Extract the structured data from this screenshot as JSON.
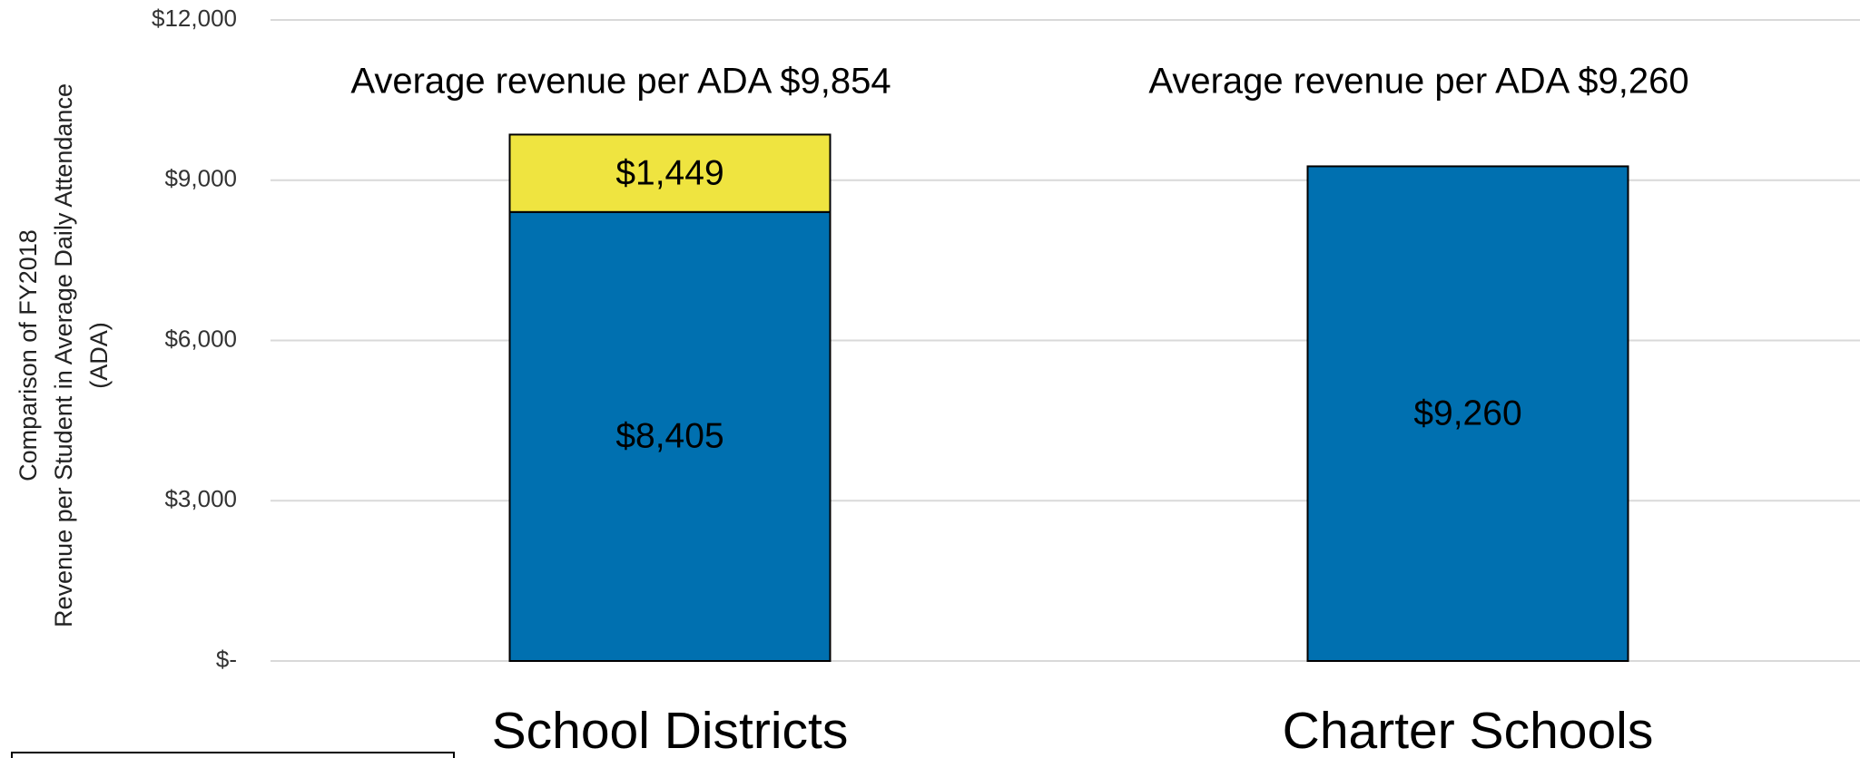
{
  "chart_data": {
    "type": "stacked_bar",
    "y_label": [
      "Comparison of FY2018",
      "Revenue per Student in Average Daily Attendance",
      "(ADA)"
    ],
    "categories": [
      "School Districts",
      "Charter Schools"
    ],
    "annotations": [
      "Average revenue per ADA $9,854",
      "Average revenue per ADA $9,260"
    ],
    "series": [
      {
        "color": "#0070b0",
        "values": [
          8405,
          9260
        ],
        "value_labels": [
          "$8,405",
          "$9,260"
        ]
      },
      {
        "color": "#efe440",
        "values": [
          1449,
          null
        ],
        "value_labels": [
          "$1,449",
          null
        ]
      }
    ],
    "ylim": [
      0,
      12000
    ],
    "yticks": [
      {
        "value": 0,
        "label": "$-"
      },
      {
        "value": 3000,
        "label": "$3,000"
      },
      {
        "value": 6000,
        "label": "$6,000"
      },
      {
        "value": 9000,
        "label": "$9,000"
      },
      {
        "value": 12000,
        "label": "$12,000"
      }
    ],
    "grid": true
  }
}
